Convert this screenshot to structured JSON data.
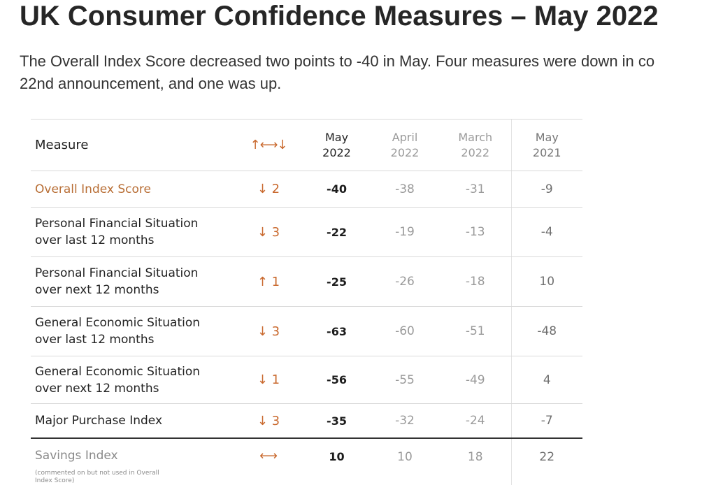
{
  "page": {
    "title": "UK Consumer Confidence Measures – May 2022",
    "intro_line1": "The Overall Index Score decreased two points to -40 in May. Four measures were down in co",
    "intro_line2": "22nd announcement, and one was up."
  },
  "table": {
    "header": {
      "measure": "Measure",
      "change": "↑⟷↓",
      "may_2022": [
        "May",
        "2022"
      ],
      "april_2022": [
        "April",
        "2022"
      ],
      "march_2022": [
        "March",
        "2022"
      ],
      "may_2021": [
        "May",
        "2021"
      ]
    },
    "rows": [
      {
        "measure": [
          "Overall Index Score"
        ],
        "change": "↓ 2",
        "may_2022": "-40",
        "april_2022": "-38",
        "march_2022": "-31",
        "may_2021": "-9"
      },
      {
        "measure": [
          "Personal Financial Situation",
          "over last 12 months"
        ],
        "change": "↓ 3",
        "may_2022": "-22",
        "april_2022": "-19",
        "march_2022": "-13",
        "may_2021": "-4"
      },
      {
        "measure": [
          "Personal Financial Situation",
          "over next 12 months"
        ],
        "change": "↑ 1",
        "may_2022": "-25",
        "april_2022": "-26",
        "march_2022": "-18",
        "may_2021": "10"
      },
      {
        "measure": [
          "General Economic Situation",
          "over last 12 months"
        ],
        "change": "↓ 3",
        "may_2022": "-63",
        "april_2022": "-60",
        "march_2022": "-51",
        "may_2021": "-48"
      },
      {
        "measure": [
          "General Economic Situation",
          "over next 12 months"
        ],
        "change": "↓ 1",
        "may_2022": "-56",
        "april_2022": "-55",
        "march_2022": "-49",
        "may_2021": "4"
      },
      {
        "measure": [
          "Major Purchase Index"
        ],
        "change": "↓ 3",
        "may_2022": "-35",
        "april_2022": "-32",
        "march_2022": "-24",
        "may_2021": "-7"
      },
      {
        "measure": [
          "Savings Index"
        ],
        "note": "(commented on but not used in Overall Index Score)",
        "change": "⟷",
        "may_2022": "10",
        "april_2022": "10",
        "march_2022": "18",
        "may_2021": "22"
      }
    ]
  },
  "colors": {
    "accent": "#c9692e",
    "title": "#262626",
    "muted": "#9a9a9a"
  }
}
